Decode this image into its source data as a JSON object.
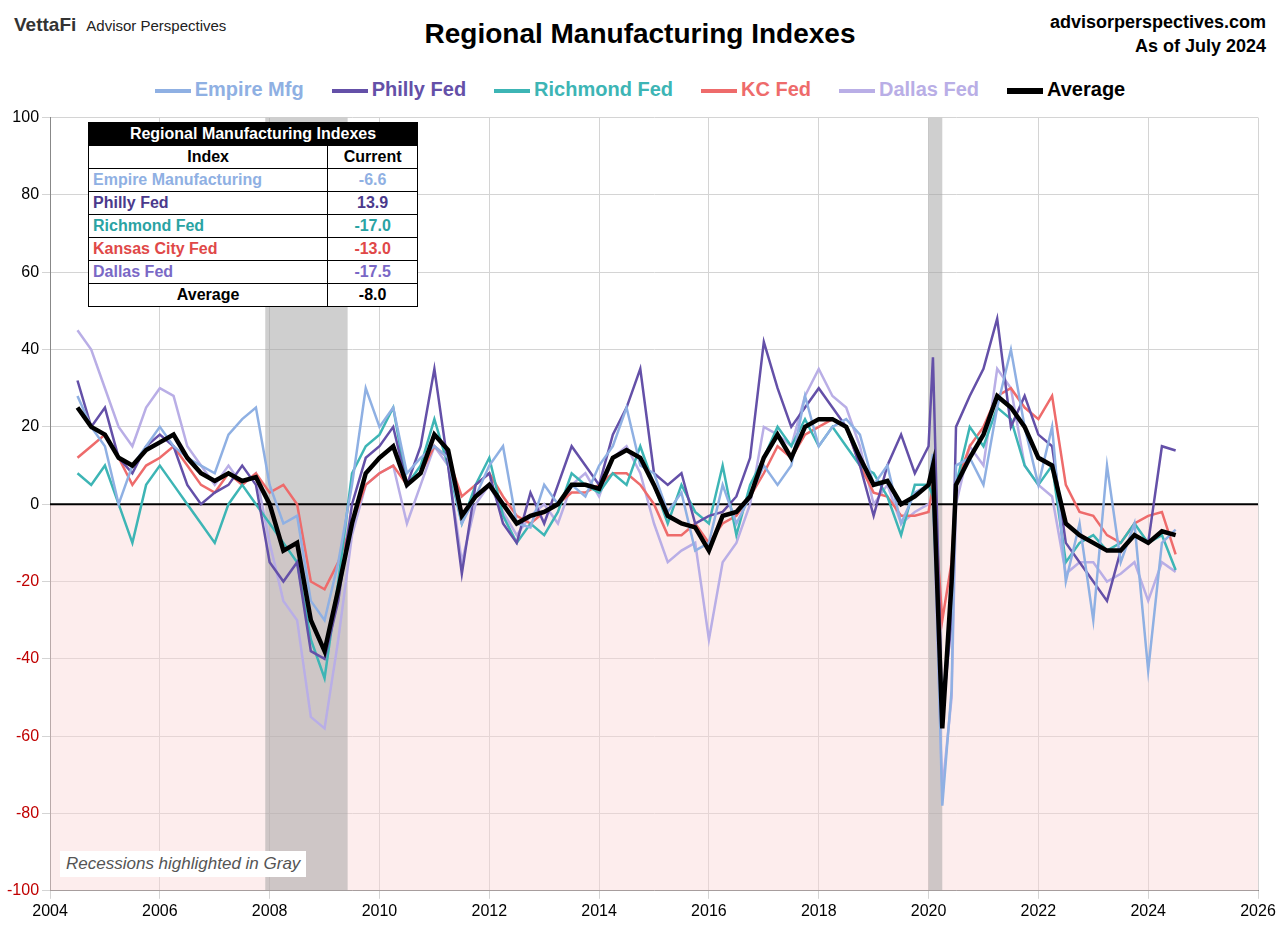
{
  "chart_data": {
    "type": "line",
    "title": "Regional Manufacturing Indexes",
    "brand": "VettaFi",
    "brand_sub": "Advisor Perspectives",
    "source": "advisorperspectives.com",
    "as_of": "As of July 2024",
    "annotation": "Recessions highlighted in Gray",
    "legend": "top",
    "grid": true,
    "xlim": [
      2004,
      2026
    ],
    "xticks": [
      2004,
      2006,
      2008,
      2010,
      2012,
      2014,
      2016,
      2018,
      2020,
      2022,
      2024,
      2026
    ],
    "ylim": [
      -100,
      100
    ],
    "yticks": [
      -100,
      -80,
      -60,
      -40,
      -20,
      0,
      20,
      40,
      60,
      80,
      100
    ],
    "recessions": [
      {
        "start": 2007.92,
        "end": 2009.42
      },
      {
        "start": 2020.0,
        "end": 2020.25
      }
    ],
    "x": [
      2004.5,
      2004.75,
      2005.0,
      2005.25,
      2005.5,
      2005.75,
      2006.0,
      2006.25,
      2006.5,
      2006.75,
      2007.0,
      2007.25,
      2007.5,
      2007.75,
      2008.0,
      2008.25,
      2008.5,
      2008.75,
      2009.0,
      2009.25,
      2009.5,
      2009.75,
      2010.0,
      2010.25,
      2010.5,
      2010.75,
      2011.0,
      2011.25,
      2011.5,
      2011.75,
      2012.0,
      2012.25,
      2012.5,
      2012.75,
      2013.0,
      2013.25,
      2013.5,
      2013.75,
      2014.0,
      2014.25,
      2014.5,
      2014.75,
      2015.0,
      2015.25,
      2015.5,
      2015.75,
      2016.0,
      2016.25,
      2016.5,
      2016.75,
      2017.0,
      2017.25,
      2017.5,
      2017.75,
      2018.0,
      2018.25,
      2018.5,
      2018.75,
      2019.0,
      2019.25,
      2019.5,
      2019.75,
      2020.0,
      2020.08,
      2020.25,
      2020.42,
      2020.5,
      2020.75,
      2021.0,
      2021.25,
      2021.5,
      2021.75,
      2022.0,
      2022.25,
      2022.5,
      2022.75,
      2023.0,
      2023.25,
      2023.5,
      2023.75,
      2024.0,
      2024.25,
      2024.5
    ],
    "series": [
      {
        "name": "Empire Mfg",
        "color": "#8fb0e3",
        "values": [
          28,
          20,
          15,
          0,
          10,
          15,
          20,
          15,
          12,
          10,
          8,
          18,
          22,
          25,
          5,
          -5,
          -3,
          -25,
          -30,
          -15,
          5,
          30,
          20,
          25,
          8,
          12,
          15,
          12,
          -5,
          2,
          10,
          15,
          -5,
          -6,
          5,
          0,
          5,
          2,
          10,
          15,
          25,
          10,
          8,
          -2,
          3,
          -12,
          -10,
          5,
          -5,
          2,
          10,
          5,
          10,
          28,
          15,
          20,
          22,
          18,
          5,
          10,
          -5,
          3,
          5,
          13,
          -78,
          -48,
          10,
          12,
          5,
          25,
          40,
          20,
          5,
          20,
          -20,
          -5,
          -30,
          10,
          -15,
          -5,
          -43,
          -10,
          -6.6
        ]
      },
      {
        "name": "Philly Fed",
        "color": "#6450a8",
        "values": [
          32,
          20,
          25,
          12,
          8,
          15,
          18,
          15,
          5,
          0,
          3,
          5,
          10,
          5,
          -15,
          -20,
          -15,
          -38,
          -40,
          -25,
          0,
          12,
          15,
          20,
          5,
          15,
          35,
          10,
          -18,
          5,
          8,
          -5,
          -10,
          3,
          -5,
          5,
          15,
          10,
          5,
          18,
          25,
          35,
          8,
          5,
          8,
          -5,
          -3,
          -2,
          2,
          12,
          42,
          30,
          20,
          25,
          30,
          25,
          20,
          10,
          -3,
          10,
          18,
          8,
          15,
          38,
          -55,
          -30,
          20,
          28,
          35,
          48,
          20,
          28,
          18,
          15,
          -10,
          -15,
          -20,
          -25,
          -12,
          -8,
          -10,
          15,
          13.9
        ]
      },
      {
        "name": "Richmond Fed",
        "color": "#3db5b5",
        "values": [
          8,
          5,
          10,
          0,
          -10,
          5,
          10,
          5,
          0,
          -5,
          -10,
          0,
          5,
          0,
          -5,
          -10,
          -15,
          -35,
          -45,
          -20,
          8,
          15,
          18,
          25,
          5,
          10,
          22,
          10,
          -5,
          5,
          12,
          -3,
          -10,
          -5,
          -8,
          -2,
          8,
          5,
          3,
          8,
          5,
          15,
          5,
          -5,
          5,
          -2,
          -5,
          10,
          -8,
          5,
          12,
          20,
          15,
          22,
          15,
          20,
          15,
          10,
          8,
          2,
          -8,
          5,
          5,
          2,
          -55,
          -20,
          5,
          20,
          15,
          25,
          22,
          10,
          5,
          10,
          -15,
          -10,
          -8,
          -12,
          -10,
          -5,
          -10,
          -8,
          -17
        ]
      },
      {
        "name": "KC Fed",
        "color": "#ee6b6b",
        "values": [
          12,
          15,
          18,
          12,
          5,
          10,
          12,
          15,
          10,
          5,
          3,
          8,
          5,
          8,
          3,
          5,
          0,
          -20,
          -22,
          -15,
          -5,
          5,
          8,
          10,
          5,
          8,
          15,
          12,
          2,
          5,
          8,
          2,
          -3,
          -5,
          -2,
          0,
          3,
          3,
          5,
          8,
          8,
          5,
          0,
          -8,
          -8,
          -5,
          -10,
          -5,
          -3,
          2,
          8,
          15,
          12,
          18,
          20,
          22,
          20,
          10,
          3,
          2,
          -3,
          -3,
          -2,
          5,
          -30,
          -15,
          5,
          15,
          20,
          28,
          30,
          25,
          22,
          28,
          5,
          -2,
          -3,
          -8,
          -10,
          -5,
          -3,
          -2,
          -13
        ]
      },
      {
        "name": "Dallas Fed",
        "color": "#b9aee6",
        "values": [
          45,
          40,
          30,
          20,
          15,
          25,
          30,
          28,
          15,
          10,
          5,
          10,
          5,
          8,
          -10,
          -25,
          -30,
          -55,
          -58,
          -35,
          -8,
          5,
          8,
          10,
          -5,
          5,
          15,
          10,
          -15,
          0,
          5,
          -2,
          -8,
          -3,
          0,
          -5,
          5,
          8,
          2,
          12,
          15,
          8,
          -5,
          -15,
          -12,
          -10,
          -35,
          -15,
          -10,
          0,
          20,
          18,
          15,
          28,
          35,
          28,
          25,
          15,
          0,
          5,
          -5,
          -2,
          0,
          2,
          -74,
          -50,
          0,
          15,
          10,
          35,
          30,
          10,
          5,
          2,
          -18,
          -15,
          -15,
          -20,
          -18,
          -15,
          -25,
          -15,
          -17.5
        ]
      },
      {
        "name": "Average",
        "color": "#000000",
        "line_style": "thick",
        "values": [
          25,
          20,
          18,
          12,
          10,
          14,
          16,
          18,
          12,
          8,
          6,
          8,
          6,
          7,
          0,
          -12,
          -10,
          -30,
          -38,
          -22,
          -5,
          8,
          12,
          15,
          5,
          8,
          18,
          14,
          -3,
          2,
          5,
          0,
          -5,
          -3,
          -2,
          0,
          5,
          5,
          4,
          12,
          14,
          12,
          5,
          -3,
          -5,
          -6,
          -12,
          -3,
          -2,
          2,
          12,
          18,
          12,
          20,
          22,
          22,
          20,
          12,
          5,
          6,
          0,
          2,
          5,
          10,
          -58,
          -20,
          5,
          12,
          18,
          28,
          25,
          20,
          12,
          10,
          -5,
          -8,
          -10,
          -12,
          -12,
          -8,
          -10,
          -7,
          -8
        ]
      }
    ],
    "table": {
      "title": "Regional Manufacturing Indexes",
      "columns": [
        "Index",
        "Current"
      ],
      "rows": [
        {
          "index": "Empire Manufacturing",
          "current": "-6.6",
          "color": "#8fb0e3"
        },
        {
          "index": "Philly Fed",
          "current": "13.9",
          "color": "#4b3a8c"
        },
        {
          "index": "Richmond Fed",
          "current": "-17.0",
          "color": "#2aa3a3"
        },
        {
          "index": "Kansas City Fed",
          "current": "-13.0",
          "color": "#e04848"
        },
        {
          "index": "Dallas Fed",
          "current": "-17.5",
          "color": "#7a68c6"
        },
        {
          "index": "Average",
          "current": "-8.0",
          "color": "#000000"
        }
      ]
    }
  }
}
